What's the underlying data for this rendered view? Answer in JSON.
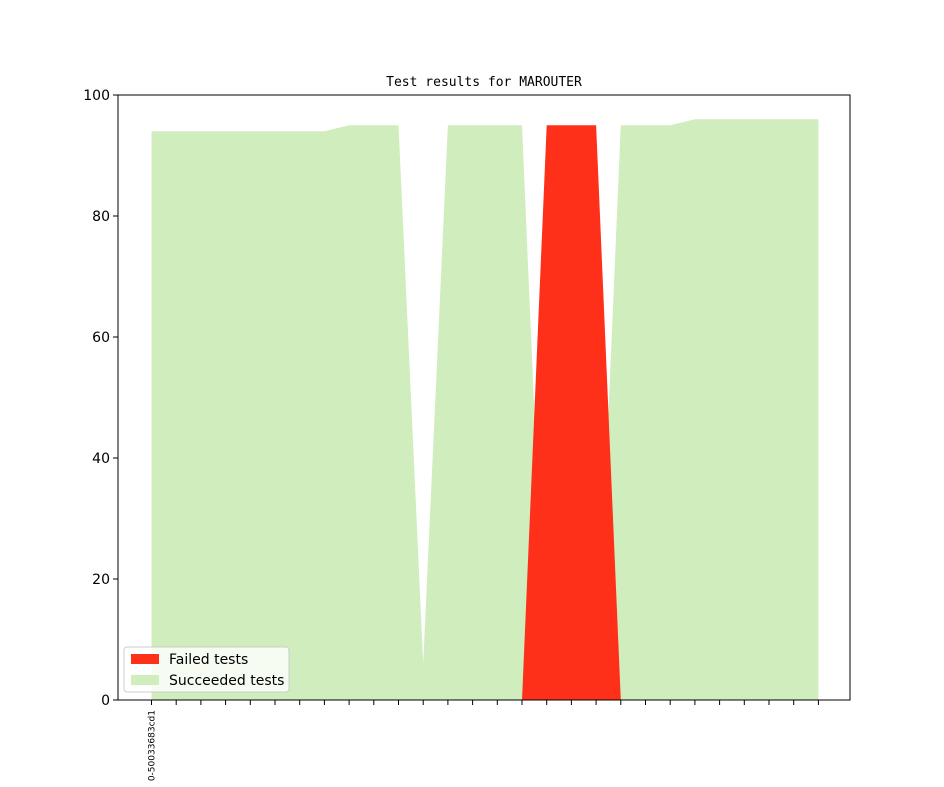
{
  "chart_data": {
    "type": "area",
    "title": "Test results for MAROUTER",
    "xlabel": "",
    "ylabel": "",
    "ylim": [
      0,
      100
    ],
    "yticks": [
      0,
      20,
      40,
      60,
      80,
      100
    ],
    "x_count": 28,
    "x_tick_labels": [
      "0-50033683cd1"
    ],
    "series": [
      {
        "name": "Failed tests",
        "color": "#ff3019",
        "values": [
          0,
          0,
          0,
          0,
          0,
          0,
          0,
          0,
          0,
          0,
          0,
          0,
          0,
          0,
          0,
          0,
          95,
          95,
          95,
          0,
          0,
          0,
          0,
          0,
          0,
          0,
          0,
          0
        ]
      },
      {
        "name": "Succeeded tests",
        "color": "#d0edbd",
        "values": [
          94,
          94,
          94,
          94,
          94,
          94,
          94,
          94,
          95,
          95,
          95,
          6,
          95,
          95,
          95,
          95,
          0,
          0,
          0,
          95,
          95,
          95,
          96,
          96,
          96,
          96,
          96,
          96
        ]
      }
    ],
    "legend": {
      "position": "lower-left"
    },
    "grid": false
  }
}
